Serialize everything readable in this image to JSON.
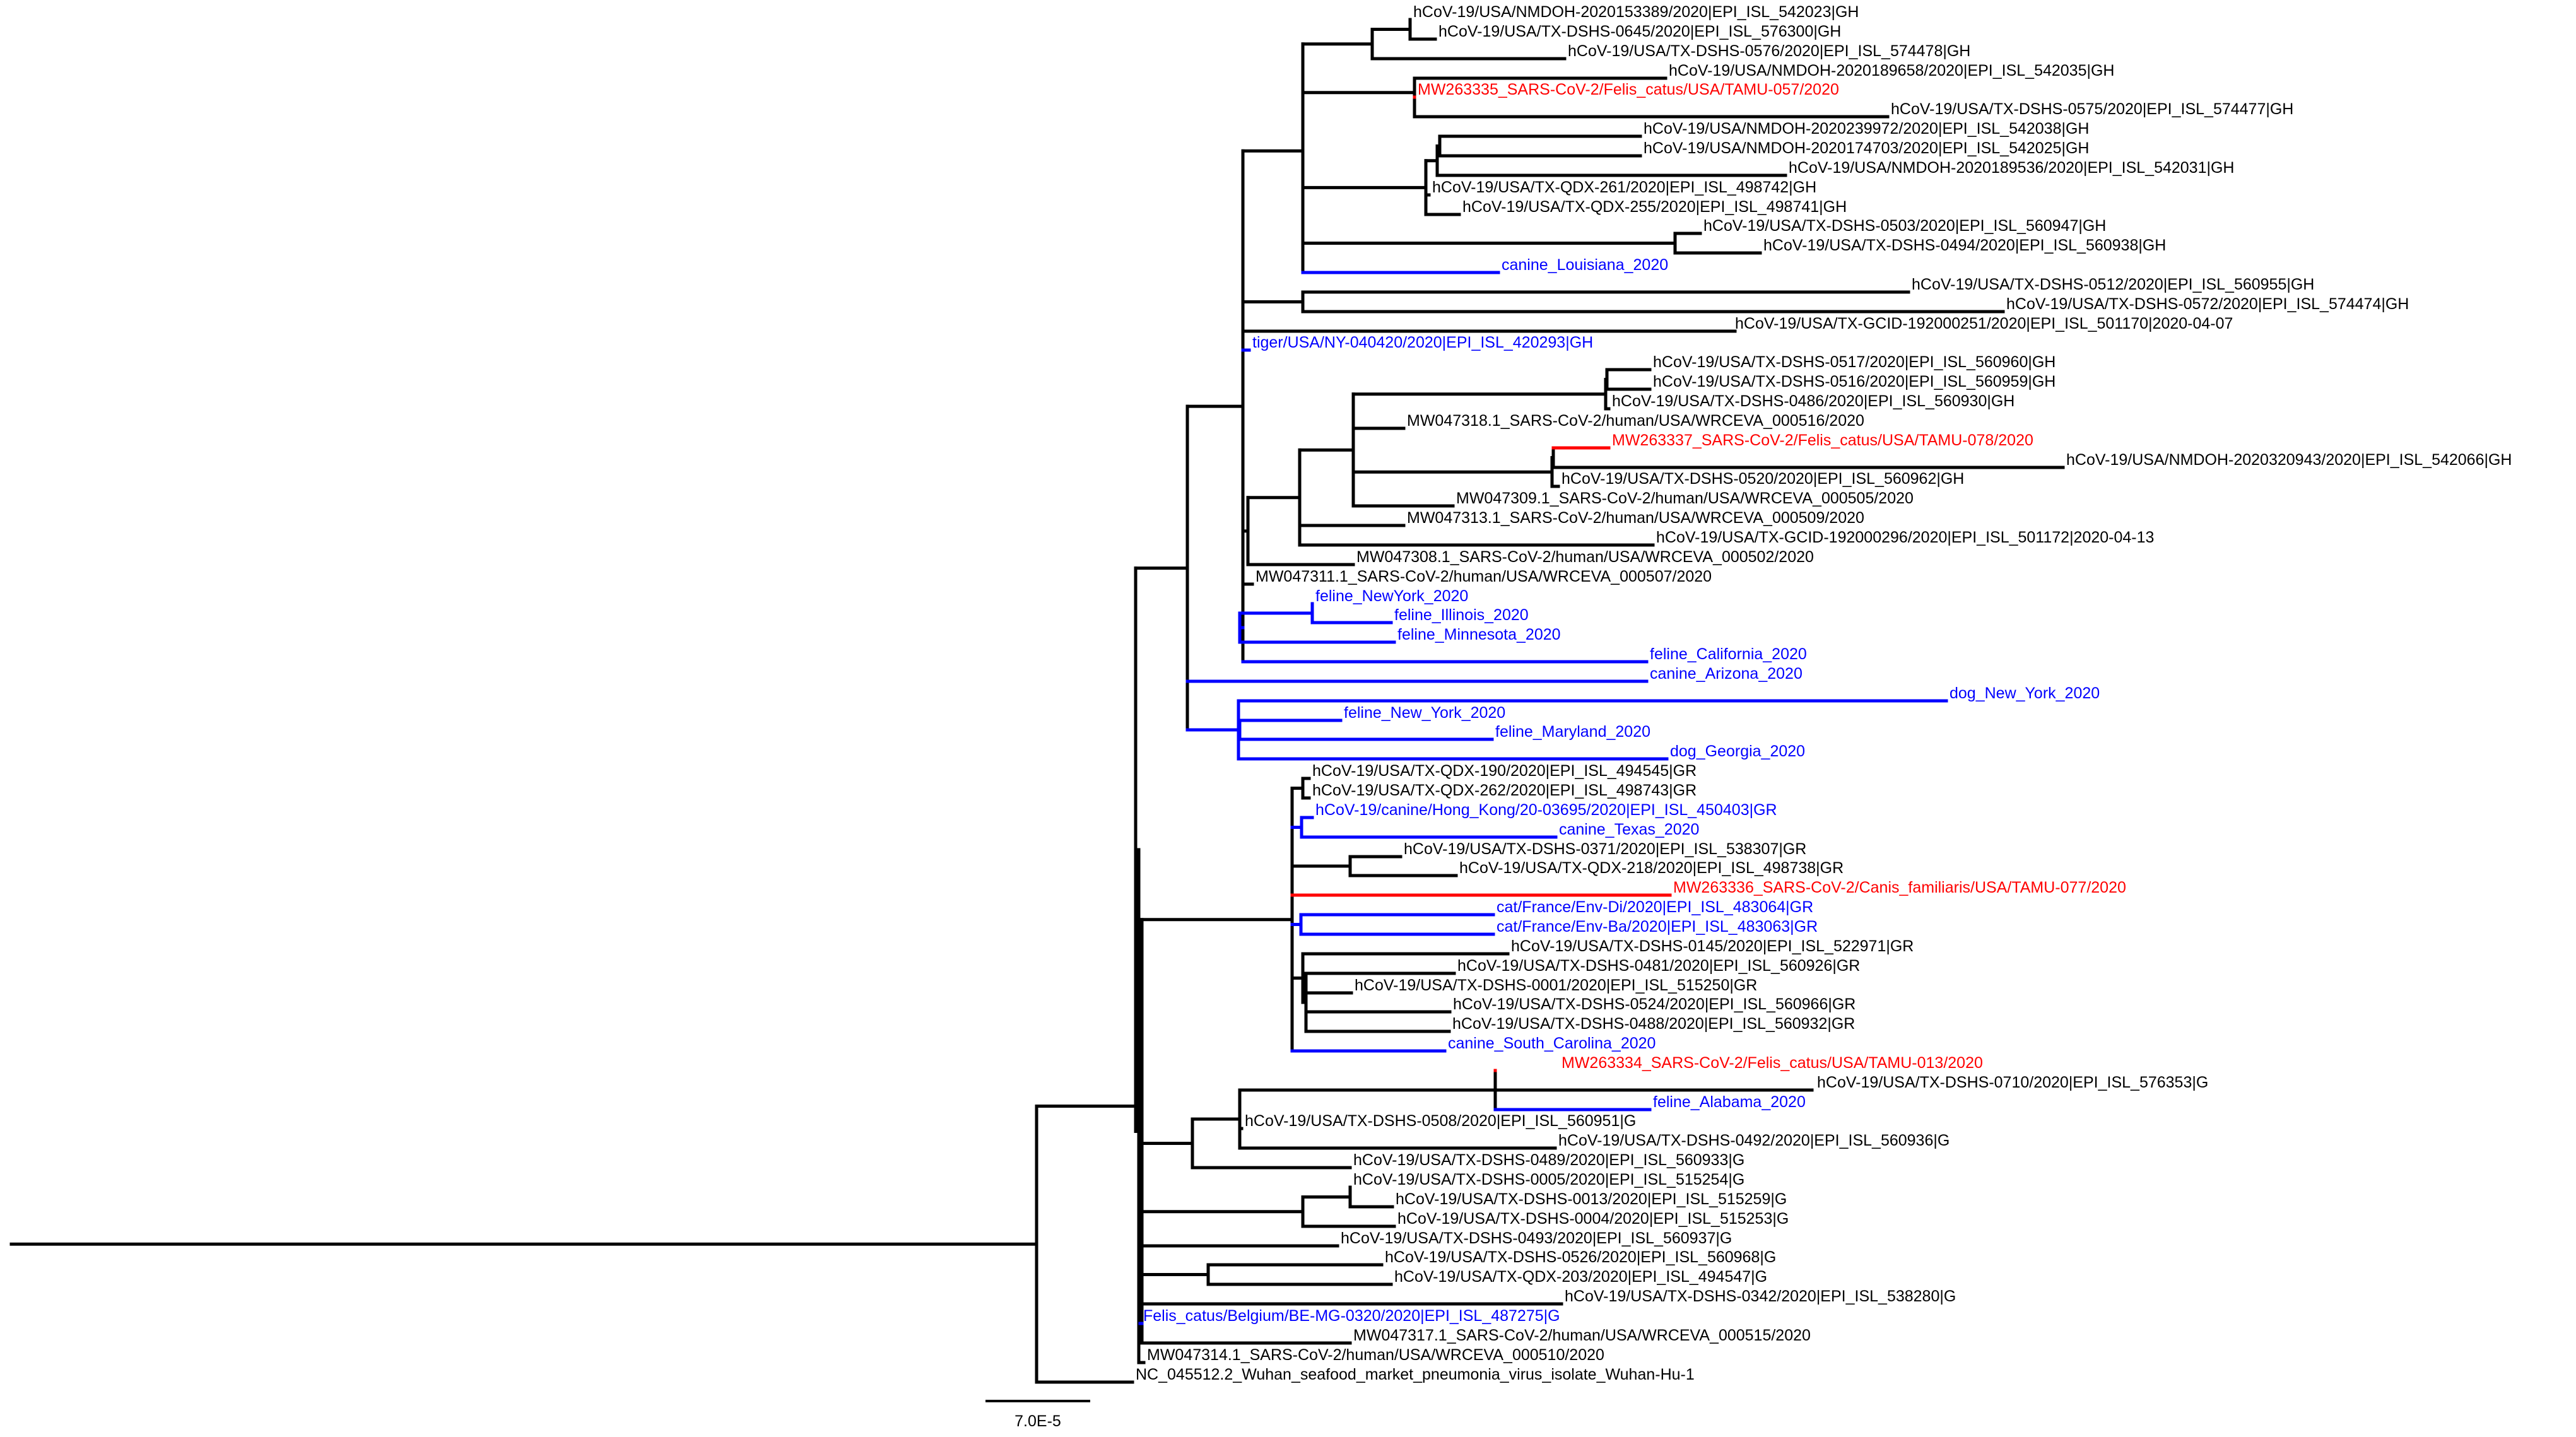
{
  "colors": {
    "default": "#000000",
    "animal": "#0000ff",
    "tamu": "#ff0000"
  },
  "scale_bar": {
    "label": "7.0E-5"
  },
  "leaves": [
    {
      "id": "l1",
      "label": "hCoV-19/USA/NMDOH-2020153389/2020|EPI_ISL_542023|GH",
      "color": "default"
    },
    {
      "id": "l2",
      "label": "hCoV-19/USA/TX-DSHS-0645/2020|EPI_ISL_576300|GH",
      "color": "default"
    },
    {
      "id": "l3",
      "label": "hCoV-19/USA/TX-DSHS-0576/2020|EPI_ISL_574478|GH",
      "color": "default"
    },
    {
      "id": "l4",
      "label": "hCoV-19/USA/NMDOH-2020189658/2020|EPI_ISL_542035|GH",
      "color": "default"
    },
    {
      "id": "l5",
      "label": "MW263335_SARS-CoV-2/Felis_catus/USA/TAMU-057/2020",
      "color": "tamu"
    },
    {
      "id": "l6",
      "label": "hCoV-19/USA/TX-DSHS-0575/2020|EPI_ISL_574477|GH",
      "color": "default"
    },
    {
      "id": "l7",
      "label": "hCoV-19/USA/NMDOH-2020239972/2020|EPI_ISL_542038|GH",
      "color": "default"
    },
    {
      "id": "l8",
      "label": "hCoV-19/USA/NMDOH-2020174703/2020|EPI_ISL_542025|GH",
      "color": "default"
    },
    {
      "id": "l9",
      "label": "hCoV-19/USA/NMDOH-2020189536/2020|EPI_ISL_542031|GH",
      "color": "default"
    },
    {
      "id": "l10",
      "label": "hCoV-19/USA/TX-QDX-261/2020|EPI_ISL_498742|GH",
      "color": "default"
    },
    {
      "id": "l11",
      "label": "hCoV-19/USA/TX-QDX-255/2020|EPI_ISL_498741|GH",
      "color": "default"
    },
    {
      "id": "l12",
      "label": "hCoV-19/USA/TX-DSHS-0503/2020|EPI_ISL_560947|GH",
      "color": "default"
    },
    {
      "id": "l13",
      "label": "hCoV-19/USA/TX-DSHS-0494/2020|EPI_ISL_560938|GH",
      "color": "default"
    },
    {
      "id": "l14",
      "label": "canine_Louisiana_2020",
      "color": "animal"
    },
    {
      "id": "l15",
      "label": "hCoV-19/USA/TX-DSHS-0512/2020|EPI_ISL_560955|GH",
      "color": "default"
    },
    {
      "id": "l16",
      "label": "hCoV-19/USA/TX-DSHS-0572/2020|EPI_ISL_574474|GH",
      "color": "default"
    },
    {
      "id": "l17",
      "label": "hCoV-19/USA/TX-GCID-192000251/2020|EPI_ISL_501170|2020-04-07",
      "color": "default"
    },
    {
      "id": "l18",
      "label": "tiger/USA/NY-040420/2020|EPI_ISL_420293|GH",
      "color": "animal"
    },
    {
      "id": "l19",
      "label": "hCoV-19/USA/TX-DSHS-0517/2020|EPI_ISL_560960|GH",
      "color": "default"
    },
    {
      "id": "l20",
      "label": "hCoV-19/USA/TX-DSHS-0516/2020|EPI_ISL_560959|GH",
      "color": "default"
    },
    {
      "id": "l21",
      "label": "hCoV-19/USA/TX-DSHS-0486/2020|EPI_ISL_560930|GH",
      "color": "default"
    },
    {
      "id": "l22",
      "label": "MW047318.1_SARS-CoV-2/human/USA/WRCEVA_000516/2020",
      "color": "default"
    },
    {
      "id": "l23",
      "label": "MW263337_SARS-CoV-2/Felis_catus/USA/TAMU-078/2020",
      "color": "tamu"
    },
    {
      "id": "l24",
      "label": "hCoV-19/USA/NMDOH-2020320943/2020|EPI_ISL_542066|GH",
      "color": "default"
    },
    {
      "id": "l25",
      "label": "hCoV-19/USA/TX-DSHS-0520/2020|EPI_ISL_560962|GH",
      "color": "default"
    },
    {
      "id": "l26",
      "label": "MW047309.1_SARS-CoV-2/human/USA/WRCEVA_000505/2020",
      "color": "default"
    },
    {
      "id": "l27",
      "label": "MW047313.1_SARS-CoV-2/human/USA/WRCEVA_000509/2020",
      "color": "default"
    },
    {
      "id": "l28",
      "label": "hCoV-19/USA/TX-GCID-192000296/2020|EPI_ISL_501172|2020-04-13",
      "color": "default"
    },
    {
      "id": "l29",
      "label": "MW047308.1_SARS-CoV-2/human/USA/WRCEVA_000502/2020",
      "color": "default"
    },
    {
      "id": "l30",
      "label": "MW047311.1_SARS-CoV-2/human/USA/WRCEVA_000507/2020",
      "color": "default"
    },
    {
      "id": "l31",
      "label": "feline_NewYork_2020",
      "color": "animal"
    },
    {
      "id": "l32",
      "label": "feline_Illinois_2020",
      "color": "animal"
    },
    {
      "id": "l33",
      "label": "feline_Minnesota_2020",
      "color": "animal"
    },
    {
      "id": "l34",
      "label": "feline_California_2020",
      "color": "animal"
    },
    {
      "id": "l35",
      "label": "canine_Arizona_2020",
      "color": "animal"
    },
    {
      "id": "l36",
      "label": "dog_New_York_2020",
      "color": "animal"
    },
    {
      "id": "l37",
      "label": "feline_New_York_2020",
      "color": "animal"
    },
    {
      "id": "l38",
      "label": "feline_Maryland_2020",
      "color": "animal"
    },
    {
      "id": "l39",
      "label": "dog_Georgia_2020",
      "color": "animal"
    },
    {
      "id": "l40",
      "label": "hCoV-19/USA/TX-QDX-190/2020|EPI_ISL_494545|GR",
      "color": "default"
    },
    {
      "id": "l41",
      "label": "hCoV-19/USA/TX-QDX-262/2020|EPI_ISL_498743|GR",
      "color": "default"
    },
    {
      "id": "l42",
      "label": "hCoV-19/canine/Hong_Kong/20-03695/2020|EPI_ISL_450403|GR",
      "color": "animal"
    },
    {
      "id": "l43",
      "label": "canine_Texas_2020",
      "color": "animal"
    },
    {
      "id": "l44",
      "label": "hCoV-19/USA/TX-DSHS-0371/2020|EPI_ISL_538307|GR",
      "color": "default"
    },
    {
      "id": "l45",
      "label": "hCoV-19/USA/TX-QDX-218/2020|EPI_ISL_498738|GR",
      "color": "default"
    },
    {
      "id": "l46",
      "label": "MW263336_SARS-CoV-2/Canis_familiaris/USA/TAMU-077/2020",
      "color": "tamu"
    },
    {
      "id": "l47",
      "label": "cat/France/Env-Di/2020|EPI_ISL_483064|GR",
      "color": "animal"
    },
    {
      "id": "l48",
      "label": "cat/France/Env-Ba/2020|EPI_ISL_483063|GR",
      "color": "animal"
    },
    {
      "id": "l49",
      "label": "hCoV-19/USA/TX-DSHS-0145/2020|EPI_ISL_522971|GR",
      "color": "default"
    },
    {
      "id": "l50",
      "label": "hCoV-19/USA/TX-DSHS-0481/2020|EPI_ISL_560926|GR",
      "color": "default"
    },
    {
      "id": "l51",
      "label": "hCoV-19/USA/TX-DSHS-0001/2020|EPI_ISL_515250|GR",
      "color": "default"
    },
    {
      "id": "l52",
      "label": "hCoV-19/USA/TX-DSHS-0524/2020|EPI_ISL_560966|GR",
      "color": "default"
    },
    {
      "id": "l53",
      "label": "hCoV-19/USA/TX-DSHS-0488/2020|EPI_ISL_560932|GR",
      "color": "default"
    },
    {
      "id": "l54",
      "label": "canine_South_Carolina_2020",
      "color": "animal"
    },
    {
      "id": "l55",
      "label": "MW263334_SARS-CoV-2/Felis_catus/USA/TAMU-013/2020",
      "color": "tamu"
    },
    {
      "id": "l56",
      "label": "hCoV-19/USA/TX-DSHS-0710/2020|EPI_ISL_576353|G",
      "color": "default"
    },
    {
      "id": "l57",
      "label": "feline_Alabama_2020",
      "color": "animal"
    },
    {
      "id": "l58",
      "label": "hCoV-19/USA/TX-DSHS-0508/2020|EPI_ISL_560951|G",
      "color": "default"
    },
    {
      "id": "l59",
      "label": "hCoV-19/USA/TX-DSHS-0492/2020|EPI_ISL_560936|G",
      "color": "default"
    },
    {
      "id": "l60",
      "label": "hCoV-19/USA/TX-DSHS-0489/2020|EPI_ISL_560933|G",
      "color": "default"
    },
    {
      "id": "l61",
      "label": "hCoV-19/USA/TX-DSHS-0005/2020|EPI_ISL_515254|G",
      "color": "default"
    },
    {
      "id": "l62",
      "label": "hCoV-19/USA/TX-DSHS-0013/2020|EPI_ISL_515259|G",
      "color": "default"
    },
    {
      "id": "l63",
      "label": "hCoV-19/USA/TX-DSHS-0004/2020|EPI_ISL_515253|G",
      "color": "default"
    },
    {
      "id": "l64",
      "label": "hCoV-19/USA/TX-DSHS-0493/2020|EPI_ISL_560937|G",
      "color": "default"
    },
    {
      "id": "l65",
      "label": "hCoV-19/USA/TX-DSHS-0526/2020|EPI_ISL_560968|G",
      "color": "default"
    },
    {
      "id": "l66",
      "label": "hCoV-19/USA/TX-QDX-203/2020|EPI_ISL_494547|G",
      "color": "default"
    },
    {
      "id": "l67",
      "label": "hCoV-19/USA/TX-DSHS-0342/2020|EPI_ISL_538280|G",
      "color": "default"
    },
    {
      "id": "l68",
      "label": "Felis_catus/Belgium/BE-MG-0320/2020|EPI_ISL_487275|G",
      "color": "animal"
    },
    {
      "id": "l69",
      "label": "MW047317.1_SARS-CoV-2/human/USA/WRCEVA_000515/2020",
      "color": "default"
    },
    {
      "id": "l70",
      "label": "MW047314.1_SARS-CoV-2/human/USA/WRCEVA_000510/2020",
      "color": "default"
    },
    {
      "id": "l71",
      "label": "NC_045512.2_Wuhan_seafood_market_pneumonia_virus_isolate_Wuhan-Hu-1",
      "color": "default"
    }
  ]
}
